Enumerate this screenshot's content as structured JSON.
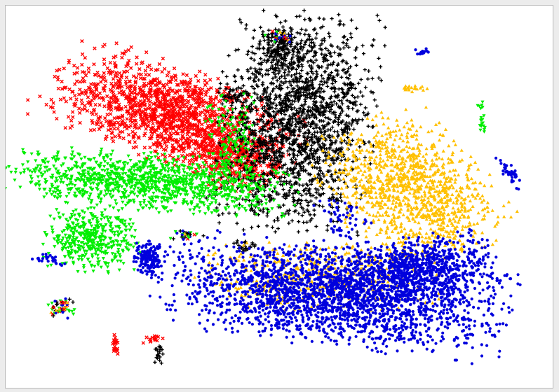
{
  "chart_data": {
    "type": "scatter",
    "title": "",
    "xlabel": "",
    "ylabel": "",
    "grid": false,
    "legend": "none",
    "axes_visible": false,
    "xlim": [
      0,
      100
    ],
    "ylim": [
      0,
      100
    ],
    "series": [
      {
        "color": "#ff0000",
        "marker": "x-cross",
        "clusters": [
          {
            "cx": 30.5,
            "cy": 72,
            "sx": 11,
            "sy": 5.5,
            "rot": -28,
            "n": 1500
          },
          {
            "cx": 41,
            "cy": 60,
            "sx": 5,
            "sy": 3.5,
            "rot": -20,
            "n": 300
          },
          {
            "cx": 19.5,
            "cy": 10.5,
            "sx": 0.3,
            "sy": 1.4,
            "rot": 0,
            "n": 20
          },
          {
            "cx": 26.5,
            "cy": 12.5,
            "sx": 0.9,
            "sy": 0.8,
            "rot": 0,
            "n": 15
          }
        ]
      },
      {
        "color": "#000000",
        "marker": "plus",
        "clusters": [
          {
            "cx": 53,
            "cy": 70,
            "sx": 6.5,
            "sy": 13,
            "rot": -5,
            "n": 1900
          },
          {
            "cx": 50.5,
            "cy": 90,
            "sx": 2.5,
            "sy": 2.5,
            "rot": 0,
            "n": 150
          },
          {
            "cx": 27.5,
            "cy": 8,
            "sx": 0.4,
            "sy": 1.3,
            "rot": 0,
            "n": 20
          },
          {
            "cx": 44,
            "cy": 37,
            "sx": 1.4,
            "sy": 0.8,
            "rot": 0,
            "n": 25
          },
          {
            "cx": 41,
            "cy": 77,
            "sx": 1.6,
            "sy": 1.0,
            "rot": 0,
            "n": 25
          }
        ]
      },
      {
        "color": "#00ee00",
        "marker": "triangle-down",
        "clusters": [
          {
            "cx": 26,
            "cy": 54,
            "sx": 12,
            "sy": 3.5,
            "rot": -6,
            "n": 1200
          },
          {
            "cx": 15,
            "cy": 39,
            "sx": 4,
            "sy": 4,
            "rot": 0,
            "n": 450
          },
          {
            "cx": 41,
            "cy": 64,
            "sx": 2.5,
            "sy": 6,
            "rot": 0,
            "n": 150
          },
          {
            "cx": 87.5,
            "cy": 71,
            "sx": 0.4,
            "sy": 2.5,
            "rot": 0,
            "n": 20
          }
        ]
      },
      {
        "color": "#ffc000",
        "marker": "triangle-up",
        "clusters": [
          {
            "cx": 74,
            "cy": 52,
            "sx": 6.5,
            "sy": 9,
            "rot": 30,
            "n": 1150
          },
          {
            "cx": 57,
            "cy": 29,
            "sx": 10,
            "sy": 4,
            "rot": 0,
            "n": 450
          },
          {
            "cx": 75,
            "cy": 79,
            "sx": 1.2,
            "sy": 0.5,
            "rot": 0,
            "n": 20
          }
        ]
      },
      {
        "color": "#0000dd",
        "marker": "dot",
        "clusters": [
          {
            "cx": 59,
            "cy": 24,
            "sx": 15,
            "sy": 6,
            "rot": -10,
            "n": 2300
          },
          {
            "cx": 76,
            "cy": 31,
            "sx": 7,
            "sy": 4,
            "rot": 10,
            "n": 800
          },
          {
            "cx": 25.5,
            "cy": 33.5,
            "sx": 1.3,
            "sy": 2.2,
            "rot": 0,
            "n": 150
          },
          {
            "cx": 7,
            "cy": 33.5,
            "sx": 1.6,
            "sy": 0.6,
            "rot": -10,
            "n": 25
          },
          {
            "cx": 92.5,
            "cy": 57,
            "sx": 0.6,
            "sy": 2.3,
            "rot": 20,
            "n": 40
          },
          {
            "cx": 76.5,
            "cy": 88.5,
            "sx": 0.6,
            "sy": 0.5,
            "rot": 0,
            "n": 15
          },
          {
            "cx": 61,
            "cy": 44,
            "sx": 3,
            "sy": 3,
            "rot": 0,
            "n": 60
          }
        ]
      },
      {
        "color": "mixed",
        "marker": "mixed",
        "clusters": [
          {
            "cx": 9.5,
            "cy": 20.5,
            "sx": 1.2,
            "sy": 1.2,
            "rot": 0,
            "n": 60
          },
          {
            "cx": 50.5,
            "cy": 93,
            "sx": 1.5,
            "sy": 0.8,
            "rot": 0,
            "n": 25
          },
          {
            "cx": 33,
            "cy": 40,
            "sx": 1.5,
            "sy": 0.7,
            "rot": 0,
            "n": 30
          }
        ]
      }
    ]
  }
}
